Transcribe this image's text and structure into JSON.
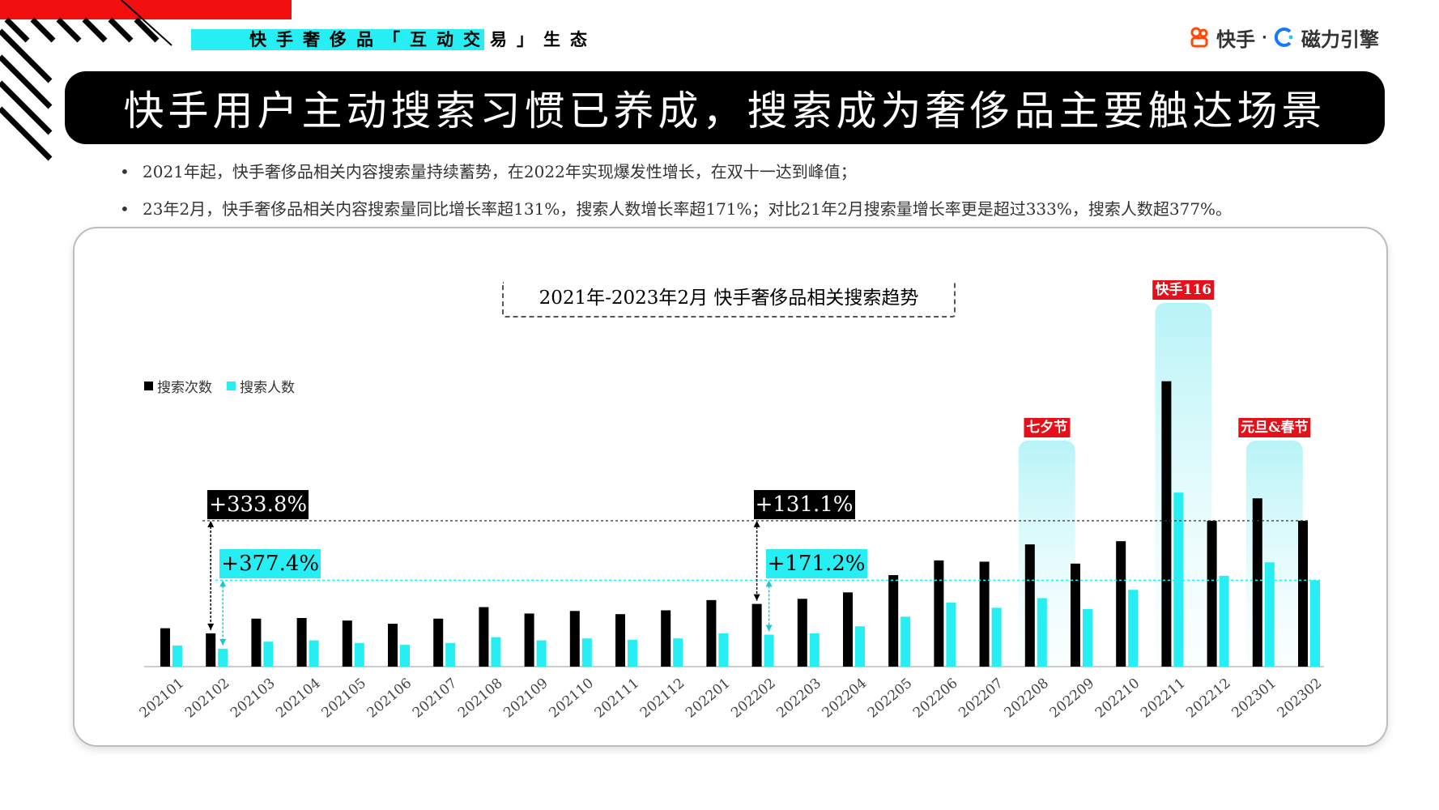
{
  "header": {
    "section_tag": "快手奢侈品「互动交易」生态",
    "logo_kuaishou": "快手",
    "logo_sep": "·",
    "logo_cili": "磁力引擎"
  },
  "title": "快手用户主动搜索习惯已养成，搜索成为奢侈品主要触达场景",
  "bullets": [
    "2021年起，快手奢侈品相关内容搜索量持续蓄势，在2022年实现爆发性增长，在双十一达到峰值；",
    "23年2月，快手奢侈品相关内容搜索量同比增长率超131%，搜索人数增长率超171%；对比21年2月搜索量增长率更是超过333%，搜索人数超377%。"
  ],
  "bullet_symbol": "•",
  "colors": {
    "search_count": "#000000",
    "searchers": "#26eef2",
    "accent_red": "#e6101a",
    "highlight_fill": "#bff6f8"
  },
  "chart_data": {
    "type": "bar",
    "title": "2021年-2023年2月 快手奢侈品相关搜索趋势",
    "categories": [
      "202101",
      "202102",
      "202103",
      "202104",
      "202105",
      "202106",
      "202107",
      "202108",
      "202109",
      "202110",
      "202111",
      "202112",
      "202201",
      "202202",
      "202203",
      "202204",
      "202205",
      "202206",
      "202207",
      "202208",
      "202209",
      "202210",
      "202211",
      "202212",
      "202301",
      "202302"
    ],
    "series": [
      {
        "name": "搜索次数",
        "values": [
          60,
          52,
          75,
          76,
          72,
          67,
          75,
          93,
          83,
          87,
          82,
          88,
          104,
          98,
          106,
          116,
          143,
          166,
          164,
          191,
          161,
          196,
          446,
          228,
          263,
          228
        ]
      },
      {
        "name": "搜索人数",
        "values": [
          33,
          28,
          39,
          41,
          37,
          34,
          37,
          46,
          41,
          44,
          42,
          44,
          52,
          50,
          52,
          63,
          78,
          100,
          92,
          107,
          90,
          120,
          272,
          142,
          163,
          135
        ]
      }
    ],
    "ylim": [
      0,
      500
    ],
    "legend_position": "top-left",
    "grid": false,
    "annotations": {
      "event_labels": [
        {
          "label": "七夕节",
          "category": "202208"
        },
        {
          "label": "快手116",
          "category": "202211"
        },
        {
          "label": "元旦&春节",
          "category": "202301"
        }
      ],
      "growth_labels": [
        {
          "label": "+333.8%",
          "category": "202102",
          "series": "搜索次数"
        },
        {
          "label": "+377.4%",
          "category": "202102",
          "series": "搜索人数"
        },
        {
          "label": "+131.1%",
          "category": "202202",
          "series": "搜索次数"
        },
        {
          "label": "+171.2%",
          "category": "202202",
          "series": "搜索人数"
        }
      ]
    }
  }
}
